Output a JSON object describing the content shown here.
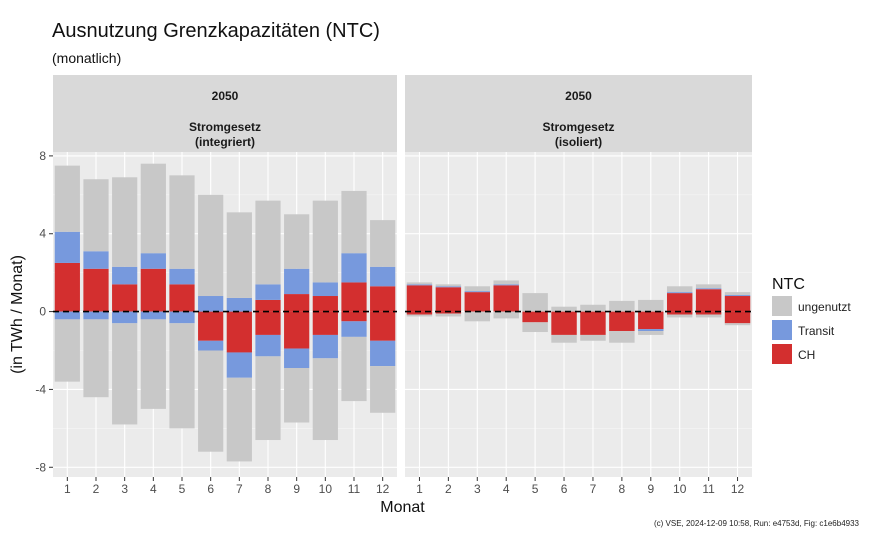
{
  "title": "Ausnutzung Grenzkapazitäten (NTC)",
  "subtitle": "(monatlich)",
  "caption": "(c) VSE, 2024-12-09 10:58, Run: e4753d, Fig: c1e6b4933",
  "colors": {
    "ungenutzt": "#c8c8c8",
    "Transit": "#7799dd",
    "CH": "#d32f2f",
    "panel_bg": "#ebebeb",
    "strip_bg": "#d9d9d9"
  },
  "chart_data": {
    "type": "bar",
    "stacking": "diverging",
    "xlabel": "Monat",
    "ylabel": "(in TWh / Monat)",
    "ylim": [
      -8.5,
      8.2
    ],
    "yticks": [
      -8,
      -4,
      0,
      4,
      8
    ],
    "categories": [
      "1",
      "2",
      "3",
      "4",
      "5",
      "6",
      "7",
      "8",
      "9",
      "10",
      "11",
      "12"
    ],
    "legend": {
      "title": "NTC",
      "position": "right",
      "items": [
        "ungenutzt",
        "Transit",
        "CH"
      ]
    },
    "panels": [
      {
        "strip_year": "2050",
        "strip_scenario": "Stromgesetz",
        "strip_variant": "(integriert)",
        "series": [
          {
            "name": "CH",
            "pos": [
              2.5,
              2.2,
              1.4,
              2.2,
              1.4,
              0,
              0,
              0.6,
              0.9,
              0.8,
              1.5,
              1.3
            ],
            "neg": [
              0,
              0,
              0,
              0,
              0,
              -1.5,
              -2.1,
              -1.2,
              -1.9,
              -1.2,
              -0.5,
              -1.5
            ]
          },
          {
            "name": "Transit",
            "pos": [
              1.6,
              0.9,
              0.9,
              0.8,
              0.8,
              0.8,
              0.7,
              0.8,
              1.3,
              0.7,
              1.5,
              1.0
            ],
            "neg": [
              -0.4,
              -0.4,
              -0.6,
              -0.4,
              -0.6,
              -0.5,
              -1.3,
              -1.1,
              -1.0,
              -1.2,
              -0.8,
              -1.3
            ]
          },
          {
            "name": "ungenutzt",
            "pos": [
              3.4,
              3.7,
              4.6,
              4.6,
              4.8,
              5.2,
              4.4,
              4.3,
              2.8,
              4.2,
              3.2,
              2.4
            ],
            "neg": [
              -3.2,
              -4.0,
              -5.2,
              -4.6,
              -5.4,
              -5.2,
              -4.3,
              -4.3,
              -2.8,
              -4.2,
              -3.3,
              -2.4
            ]
          }
        ]
      },
      {
        "strip_year": "2050",
        "strip_scenario": "Stromgesetz",
        "strip_variant": "(isoliert)",
        "series": [
          {
            "name": "CH",
            "pos": [
              1.35,
              1.25,
              1.0,
              1.35,
              0,
              0,
              0,
              0,
              0,
              0.95,
              1.15,
              0.8
            ],
            "neg": [
              -0.15,
              -0.1,
              0,
              0,
              -0.55,
              -1.2,
              -1.2,
              -1.0,
              -0.9,
              -0.15,
              -0.15,
              -0.6
            ]
          },
          {
            "name": "Transit",
            "pos": [
              0.05,
              0.05,
              0.05,
              0.05,
              0,
              0,
              0,
              0,
              0,
              0.05,
              0.05,
              0.05
            ],
            "neg": [
              0,
              0,
              0,
              0,
              0,
              0,
              0,
              0,
              -0.1,
              0,
              0,
              0
            ]
          },
          {
            "name": "ungenutzt",
            "pos": [
              0.1,
              0.1,
              0.25,
              0.2,
              0.95,
              0.25,
              0.35,
              0.55,
              0.6,
              0.3,
              0.2,
              0.15
            ],
            "neg": [
              -0.1,
              -0.15,
              -0.5,
              -0.35,
              -0.5,
              -0.4,
              -0.3,
              -0.6,
              -0.2,
              -0.15,
              -0.15,
              -0.1
            ]
          }
        ]
      }
    ]
  }
}
